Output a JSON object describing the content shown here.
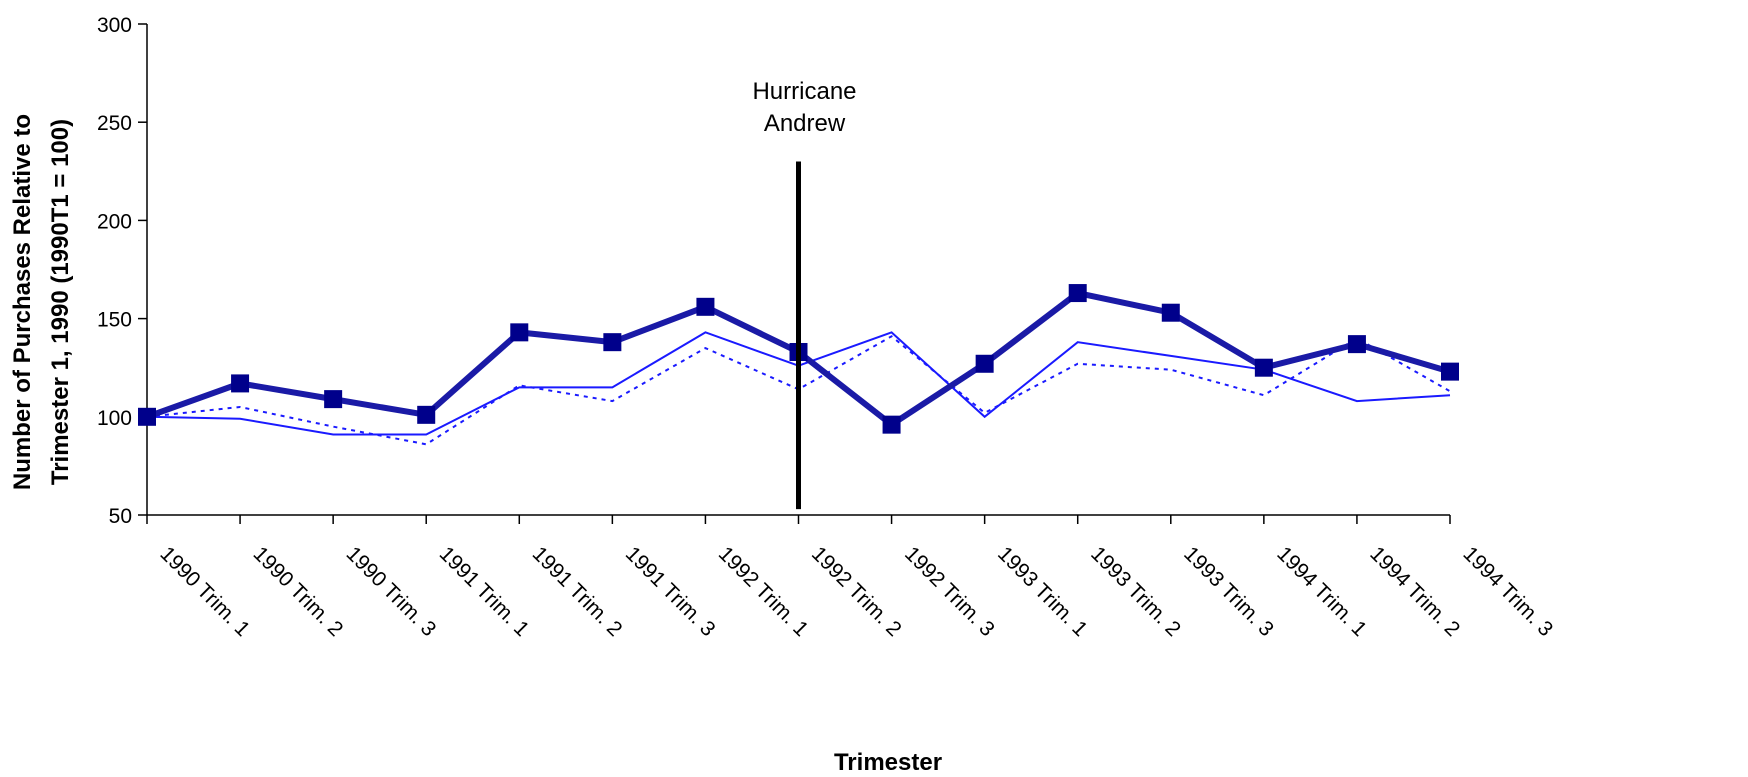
{
  "chart_data": {
    "type": "line",
    "title": "",
    "xlabel": "Trimester",
    "ylabel": "Number of Purchases Relative to Trimester 1, 1990 (1990T1 = 100)",
    "ylabel_lines": [
      "Number of Purchases Relative to",
      "Trimester 1, 1990 (1990T1 = 100)"
    ],
    "ylim": [
      50,
      300
    ],
    "yticks": [
      50,
      100,
      150,
      200,
      250,
      300
    ],
    "grid": false,
    "legend": "none",
    "categories": [
      "1990 Trim. 1",
      "1990 Trim. 2",
      "1990 Trim. 3",
      "1991 Trim. 1",
      "1991 Trim. 2",
      "1991 Trim. 3",
      "1992 Trim. 1",
      "1992 Trim. 2",
      "1992 Trim. 3",
      "1993 Trim. 1",
      "1993 Trim. 2",
      "1993 Trim. 3",
      "1994 Trim. 1",
      "1994 Trim. 2",
      "1994 Trim. 3"
    ],
    "series": [
      {
        "style": "thick-square-markers",
        "color": "#1a1aa6",
        "values": [
          100,
          117,
          109,
          101,
          143,
          138,
          156,
          133,
          96,
          127,
          163,
          153,
          125,
          137,
          123
        ]
      },
      {
        "style": "thin-solid",
        "color": "#1a1aff",
        "values": [
          100,
          99,
          91,
          91,
          115,
          115,
          143,
          126,
          143,
          100,
          138,
          131,
          124,
          108,
          111
        ]
      },
      {
        "style": "thin-dotted",
        "color": "#1a1aff",
        "values": [
          100,
          105,
          95,
          86,
          116,
          108,
          135,
          114,
          141,
          102,
          127,
          124,
          111,
          140,
          113
        ]
      }
    ],
    "annotations": [
      {
        "text_lines": [
          "Hurricane",
          "Andrew"
        ],
        "at_category_index": 7,
        "line_from": 53,
        "line_to": 230
      }
    ]
  }
}
